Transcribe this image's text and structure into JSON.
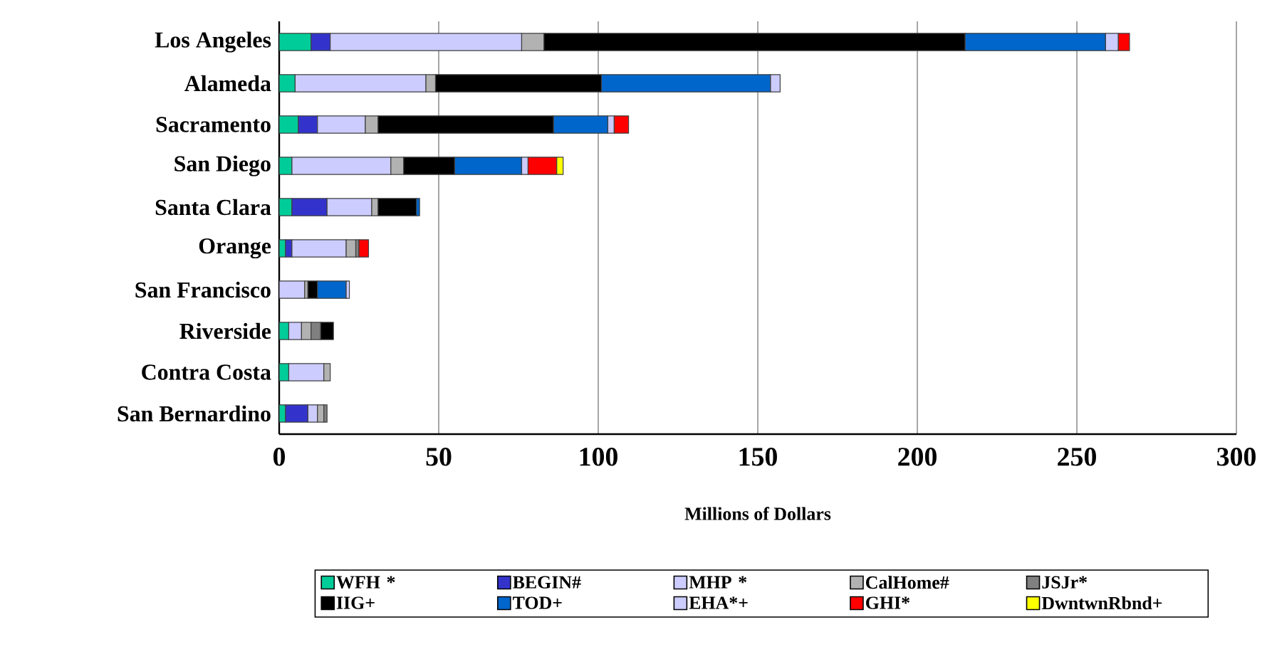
{
  "chart_data": {
    "type": "bar",
    "orientation": "horizontal",
    "stacked": true,
    "categories": [
      "Los Angeles",
      "Alameda",
      "Sacramento",
      "San Diego",
      "Santa Clara",
      "Orange",
      "San Francisco",
      "Riverside",
      "Contra Costa",
      "San Bernardino"
    ],
    "series": [
      {
        "name": "WFH *",
        "color": "#00cc99",
        "values": [
          10,
          5,
          6,
          4,
          4,
          2,
          null,
          3,
          3,
          2
        ]
      },
      {
        "name": "BEGIN#",
        "color": "#3333cc",
        "values": [
          6,
          null,
          6,
          null,
          11,
          2,
          null,
          null,
          null,
          7
        ]
      },
      {
        "name": "MHP *",
        "color": "#ccccff",
        "values": [
          60,
          41,
          15,
          31,
          14,
          17,
          8,
          4,
          11,
          3
        ]
      },
      {
        "name": "CalHome#",
        "color": "#b2b2b2",
        "values": [
          7,
          3,
          4,
          4,
          2,
          3,
          1,
          3,
          2,
          2
        ]
      },
      {
        "name": "JSJr*",
        "color": "#808080",
        "values": [
          null,
          null,
          null,
          null,
          null,
          1,
          null,
          3,
          null,
          1
        ]
      },
      {
        "name": "IIG+",
        "color": "#000000",
        "values": [
          132,
          52,
          55,
          16,
          12,
          null,
          3,
          4,
          null,
          null
        ]
      },
      {
        "name": "TOD+",
        "color": "#0066cc",
        "values": [
          44,
          53,
          17,
          21,
          1,
          null,
          9,
          null,
          null,
          null
        ]
      },
      {
        "name": "EHA*+",
        "color": "#ccccff",
        "values": [
          4,
          3,
          2,
          2,
          null,
          null,
          1,
          null,
          null,
          null
        ]
      },
      {
        "name": "GHI*",
        "color": "#ff0000",
        "values": [
          3.5,
          null,
          4.5,
          9,
          null,
          3,
          null,
          null,
          null,
          null
        ]
      },
      {
        "name": "DwntwnRbnd+",
        "color": "#ffff00",
        "values": [
          null,
          null,
          null,
          2,
          null,
          null,
          null,
          null,
          null,
          null
        ]
      }
    ],
    "xlim": [
      0,
      300
    ],
    "xticks": [
      0,
      50,
      100,
      150,
      200,
      250,
      300
    ],
    "xlabel": "Millions of Dollars",
    "grid": "x",
    "legend": "bottom"
  }
}
